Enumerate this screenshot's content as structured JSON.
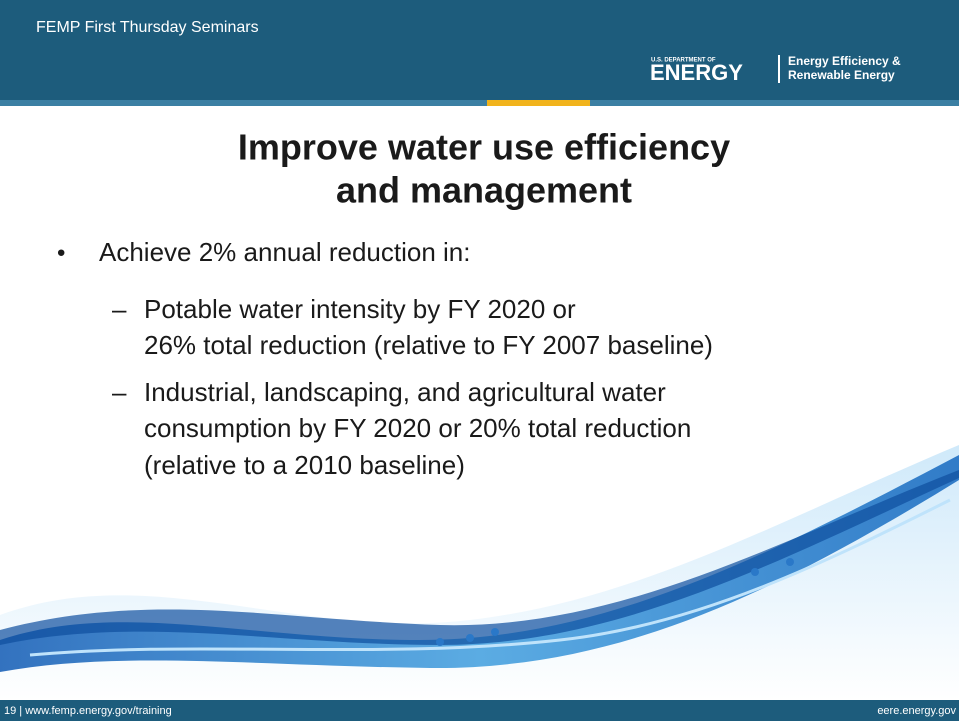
{
  "header": {
    "left_text": "FEMP First Thursday Seminars",
    "logo": {
      "agency_small": "U.S. DEPARTMENT OF",
      "agency": "ENERGY",
      "office": [
        "Energy Efficiency &",
        "Renewable Energy"
      ]
    }
  },
  "title": [
    "Improve water use efficiency",
    "and management"
  ],
  "bullets": [
    {
      "text": "Achieve 2% annual reduction in:",
      "subitems": [
        {
          "lines": [
            "Potable water intensity by FY 2020 or",
            "26% total reduction (relative to FY 2007 baseline)"
          ]
        },
        {
          "lines": [
            "Industrial, landscaping, and agricultural water",
            "consumption by FY 2020 or 20% total reduction",
            "(relative to a 2010 baseline)"
          ]
        }
      ]
    }
  ],
  "footer": {
    "left": "19 | www.femp.energy.gov/training",
    "right": "eere.energy.gov"
  }
}
